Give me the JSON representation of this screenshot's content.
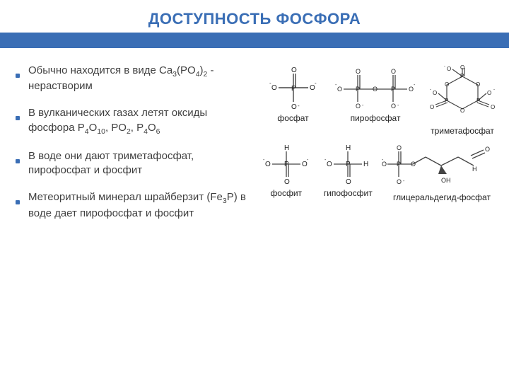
{
  "colors": {
    "title_bg": "#ffffff",
    "title_fg": "#3a6eb5",
    "band_bg": "#3a6eb5",
    "bullet_sq": "#3a6eb5",
    "text": "#3f3f3f",
    "mol_stroke": "#444444",
    "mol_text": "#222222"
  },
  "title": "ДОСТУПНОСТЬ ФОСФОРА",
  "bullets": [
    {
      "pre": "Обычно находится в виде Ca",
      "s1": "3",
      "mid1": "(PO",
      "s2": "4",
      "mid2": ")",
      "s3": "2",
      "post": " - нерастворим"
    },
    {
      "pre": "В вулканических газах летят оксиды фосфора P",
      "s1": "4",
      "mid1": "O",
      "s2": "10",
      "mid2": ", PO",
      "s3": "2",
      "mid3": ", P",
      "s4": "4",
      "mid4": "O",
      "s5": "6",
      "post": ""
    },
    {
      "plain": "В воде они дают триметафосфат, пирофосфат и фосфит"
    },
    {
      "pre": "Метеоритный минерал шрайберзит (Fe",
      "s1": "3",
      "mid1": "P) в воде дает пирофосфат и фосфит",
      "post": ""
    }
  ],
  "molecules": {
    "row1": [
      {
        "name": "фосфат"
      },
      {
        "name": "пирофосфат"
      },
      {
        "name": "триметафосфат"
      }
    ],
    "row2": [
      {
        "name": "фосфит"
      },
      {
        "name": "гипофосфит"
      },
      {
        "name": "глицеральдегид-фосфат"
      }
    ]
  }
}
